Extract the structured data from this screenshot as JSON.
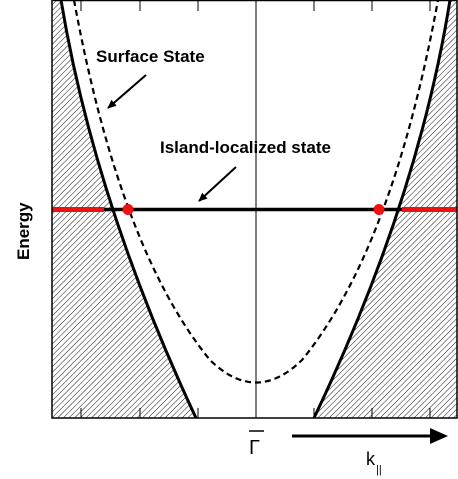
{
  "labels": {
    "surface_state": "Surface State",
    "island_state": "Island-localized state",
    "energy_axis": "Energy",
    "gamma_point": "Γ",
    "k_axis": "k",
    "k_axis_subscript": "||"
  },
  "colors": {
    "line": "#000000",
    "island_segment_outside": "#ee1111",
    "intersection_dot": "#ee1111",
    "hatch": "#000000",
    "background": "#ffffff"
  },
  "curves": {
    "bulk_band_edge": {
      "style": "solid",
      "shape": "parabola",
      "shaded_outside": true
    },
    "surface_state": {
      "style": "dashed",
      "shape": "parabola"
    },
    "island_state": {
      "style": "solid",
      "shape": "horizontal line"
    }
  },
  "icons": [
    "arrow-icon"
  ]
}
